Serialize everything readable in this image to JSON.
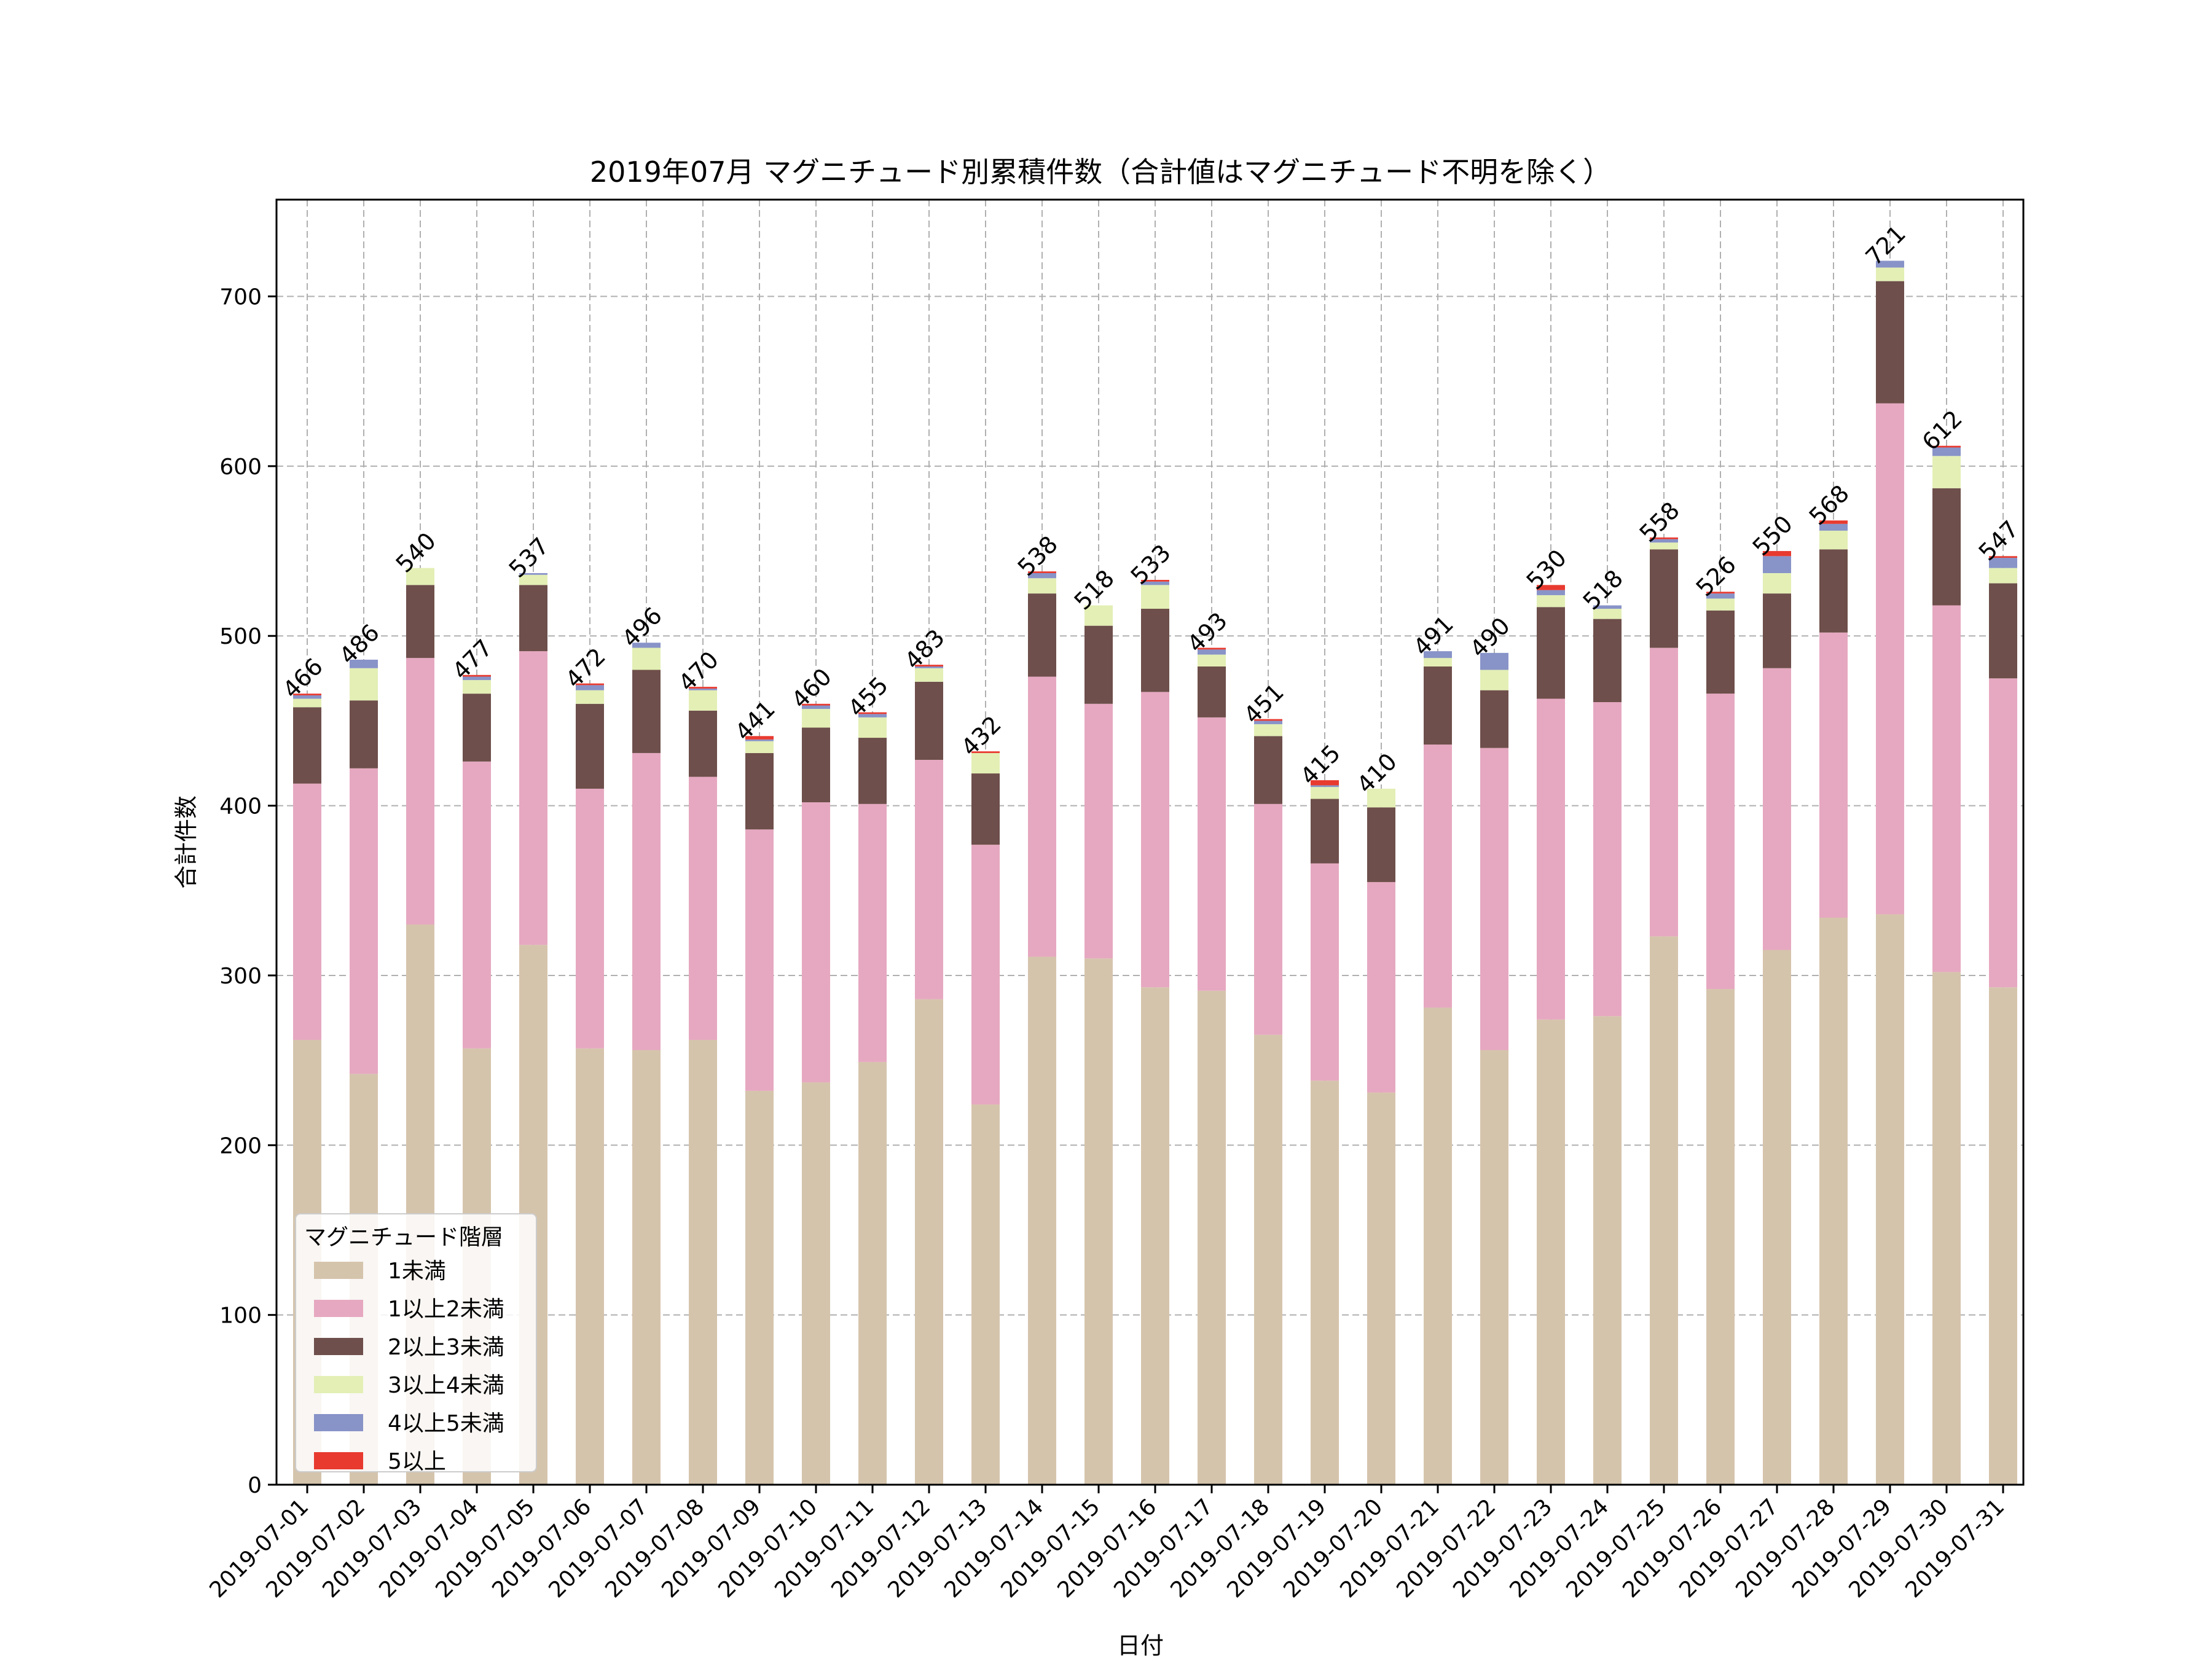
{
  "chart_data": {
    "type": "bar",
    "stacked": true,
    "title": "2019年07月 マグニチュード別累積件数（合計値はマグニチュード不明を除く）",
    "xlabel": "日付",
    "ylabel": "合計件数",
    "ylim": [
      0,
      757
    ],
    "yticks": [
      0,
      100,
      200,
      300,
      400,
      500,
      600,
      700
    ],
    "grid": true,
    "legend_title": "マグニチュード階層",
    "legend_position": "lower-left",
    "categories": [
      "2019-07-01",
      "2019-07-02",
      "2019-07-03",
      "2019-07-04",
      "2019-07-05",
      "2019-07-06",
      "2019-07-07",
      "2019-07-08",
      "2019-07-09",
      "2019-07-10",
      "2019-07-11",
      "2019-07-12",
      "2019-07-13",
      "2019-07-14",
      "2019-07-15",
      "2019-07-16",
      "2019-07-17",
      "2019-07-18",
      "2019-07-19",
      "2019-07-20",
      "2019-07-21",
      "2019-07-22",
      "2019-07-23",
      "2019-07-24",
      "2019-07-25",
      "2019-07-26",
      "2019-07-27",
      "2019-07-28",
      "2019-07-29",
      "2019-07-30",
      "2019-07-31"
    ],
    "totals": [
      466,
      486,
      540,
      477,
      537,
      472,
      496,
      470,
      441,
      460,
      455,
      483,
      432,
      538,
      518,
      533,
      493,
      451,
      415,
      410,
      491,
      490,
      530,
      518,
      558,
      526,
      550,
      568,
      721,
      612,
      547
    ],
    "series": [
      {
        "name": "1未満",
        "color": "#d5c4ac",
        "values": [
          262,
          242,
          330,
          257,
          318,
          257,
          256,
          262,
          232,
          237,
          249,
          286,
          224,
          311,
          310,
          293,
          291,
          265,
          238,
          231,
          281,
          256,
          274,
          276,
          323,
          292,
          315,
          334,
          336,
          302,
          293
        ]
      },
      {
        "name": "1以上2未満",
        "color": "#e6a8c0",
        "values": [
          151,
          180,
          157,
          169,
          173,
          153,
          175,
          155,
          154,
          165,
          152,
          141,
          153,
          165,
          150,
          174,
          161,
          136,
          128,
          124,
          155,
          178,
          189,
          185,
          170,
          174,
          166,
          168,
          301,
          216,
          182
        ]
      },
      {
        "name": "2以上3未満",
        "color": "#6e4f4b",
        "values": [
          45,
          40,
          43,
          40,
          39,
          50,
          49,
          39,
          45,
          44,
          39,
          46,
          42,
          49,
          46,
          49,
          30,
          40,
          38,
          44,
          46,
          34,
          54,
          49,
          58,
          49,
          44,
          49,
          72,
          69,
          56
        ]
      },
      {
        "name": "3以上4未満",
        "color": "#e3efb5",
        "values": [
          5,
          19,
          10,
          8,
          6,
          8,
          13,
          12,
          7,
          11,
          12,
          8,
          12,
          9,
          12,
          14,
          7,
          7,
          7,
          11,
          5,
          12,
          7,
          6,
          4,
          7,
          12,
          11,
          8,
          19,
          9
        ]
      },
      {
        "name": "4以上5未満",
        "color": "#8893c8",
        "values": [
          2,
          5,
          0,
          2,
          1,
          3,
          3,
          1,
          1,
          2,
          2,
          1,
          0,
          3,
          0,
          2,
          3,
          2,
          1,
          0,
          4,
          10,
          3,
          2,
          2,
          3,
          10,
          4,
          4,
          5,
          6
        ]
      },
      {
        "name": "5以上",
        "color": "#e83a2f",
        "values": [
          1,
          0,
          0,
          1,
          0,
          1,
          0,
          1,
          2,
          1,
          1,
          1,
          1,
          1,
          0,
          1,
          1,
          1,
          3,
          0,
          0,
          0,
          3,
          0,
          1,
          1,
          3,
          2,
          0,
          1,
          1
        ]
      }
    ]
  }
}
